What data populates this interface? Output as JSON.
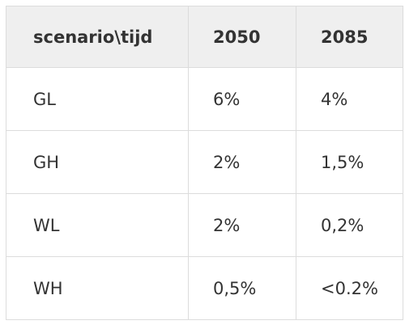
{
  "table": {
    "header": [
      "scenario\\tijd",
      "2050",
      "2085"
    ],
    "rows": [
      [
        "GL",
        "6%",
        "4%"
      ],
      [
        "GH",
        "2%",
        "1,5%"
      ],
      [
        "WL",
        "2%",
        "0,2%"
      ],
      [
        "WH",
        "0,5%",
        "<0.2%"
      ]
    ]
  }
}
